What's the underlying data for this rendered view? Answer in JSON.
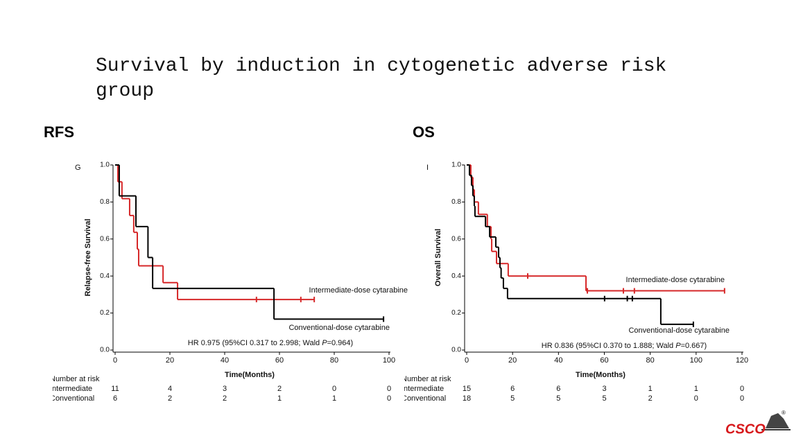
{
  "slide": {
    "title": "Survival by induction in cytogenetic adverse risk group",
    "logo": "CSCO",
    "logo_mark": "®"
  },
  "chart_data": [
    {
      "type": "step",
      "heading": "RFS",
      "panel_label": "G",
      "xlabel": "Time(Months)",
      "ylabel": "Relapse-free Survival",
      "xlim": [
        -1,
        100
      ],
      "ylim": [
        0,
        1
      ],
      "xticks": [
        0,
        20,
        40,
        60,
        80,
        100
      ],
      "yticks": [
        {
          "value": 0,
          "label": "0.0"
        },
        {
          "value": 0.2,
          "label": "0.2"
        },
        {
          "value": 0.4,
          "label": "0.4"
        },
        {
          "value": 0.6,
          "label": "0.6"
        },
        {
          "value": 0.8,
          "label": "0.8"
        },
        {
          "value": 1,
          "label": "1.0"
        }
      ],
      "series": [
        {
          "name": "Intermediate-dose cytarabine",
          "color": "#d62728",
          "x": [
            0,
            1,
            2.5,
            5.3,
            6.8,
            8.1,
            8.6,
            17.5,
            22.8
          ],
          "values": [
            1.0,
            0.909,
            0.818,
            0.727,
            0.636,
            0.545,
            0.455,
            0.364,
            0.273
          ],
          "censored_x": [
            51.6,
            67.8,
            72.7
          ],
          "censored_values": [
            0.273,
            0.273,
            0.273
          ]
        },
        {
          "name": "Conventional-dose cytarabine",
          "color": "#000000",
          "x": [
            0,
            1.5,
            7.6,
            12,
            13.7,
            58
          ],
          "values": [
            1.0,
            0.833,
            0.667,
            0.5,
            0.333,
            0.167
          ],
          "censored_x": [
            98
          ],
          "censored_values": [
            0.167
          ]
        }
      ],
      "annotation": [
        "HR 0.975 (95%CI 0.317 to 2.998; Wald ",
        "P",
        "=0.964)"
      ],
      "risk_table": {
        "title": "Number at risk",
        "x": [
          0,
          20,
          40,
          60,
          80,
          100
        ],
        "rows": [
          {
            "name": "Intermediate",
            "values": [
              11,
              4,
              3,
              2,
              0,
              0
            ]
          },
          {
            "name": "Conventional",
            "values": [
              6,
              2,
              2,
              1,
              1,
              0
            ]
          }
        ]
      }
    },
    {
      "type": "step",
      "heading": "OS",
      "panel_label": "I",
      "xlabel": "Time(Months)",
      "ylabel": "Overall Survival",
      "xlim": [
        -1,
        120
      ],
      "ylim": [
        0,
        1
      ],
      "xticks": [
        0,
        20,
        40,
        60,
        80,
        100,
        120
      ],
      "yticks": [
        {
          "value": 0,
          "label": "0.0"
        },
        {
          "value": 0.2,
          "label": "0.2"
        },
        {
          "value": 0.4,
          "label": "0.4"
        },
        {
          "value": 0.6,
          "label": "0.6"
        },
        {
          "value": 0.8,
          "label": "0.8"
        },
        {
          "value": 1,
          "label": "1.0"
        }
      ],
      "series": [
        {
          "name": "Intermediate-dose cytarabine",
          "color": "#d62728",
          "x": [
            0,
            1.8,
            2.7,
            3.3,
            5.1,
            9,
            10.6,
            10.9,
            13,
            18.1,
            52
          ],
          "values": [
            1.0,
            0.933,
            0.867,
            0.8,
            0.733,
            0.667,
            0.6,
            0.533,
            0.467,
            0.4,
            0.32
          ],
          "censored_x": [
            26.6,
            52.6,
            68.3,
            73.1,
            112.4
          ],
          "censored_values": [
            0.4,
            0.32,
            0.32,
            0.32,
            0.32
          ]
        },
        {
          "name": "Conventional-dose cytarabine",
          "color": "#000000",
          "x": [
            0,
            1.2,
            2.1,
            2.7,
            3.3,
            3.6,
            8.2,
            10,
            12.7,
            13.9,
            14.5,
            15,
            16,
            17.8,
            84.6
          ],
          "values": [
            1.0,
            0.944,
            0.889,
            0.833,
            0.778,
            0.722,
            0.667,
            0.611,
            0.556,
            0.5,
            0.444,
            0.389,
            0.333,
            0.278,
            0.139
          ],
          "censored_x": [
            60.1,
            70,
            72.2,
            98.8
          ],
          "censored_values": [
            0.278,
            0.278,
            0.278,
            0.139
          ]
        }
      ],
      "annotation": [
        "HR 0.836 (95%CI 0.370 to 1.888; Wald ",
        "P",
        "=0.667)"
      ],
      "risk_table": {
        "title": "Number at risk",
        "x": [
          0,
          20,
          40,
          60,
          80,
          100,
          120
        ],
        "rows": [
          {
            "name": "Intermediate",
            "values": [
              15,
              6,
              6,
              3,
              1,
              1,
              0
            ]
          },
          {
            "name": "Conventional",
            "values": [
              18,
              5,
              5,
              5,
              2,
              0,
              0
            ]
          }
        ]
      }
    }
  ]
}
